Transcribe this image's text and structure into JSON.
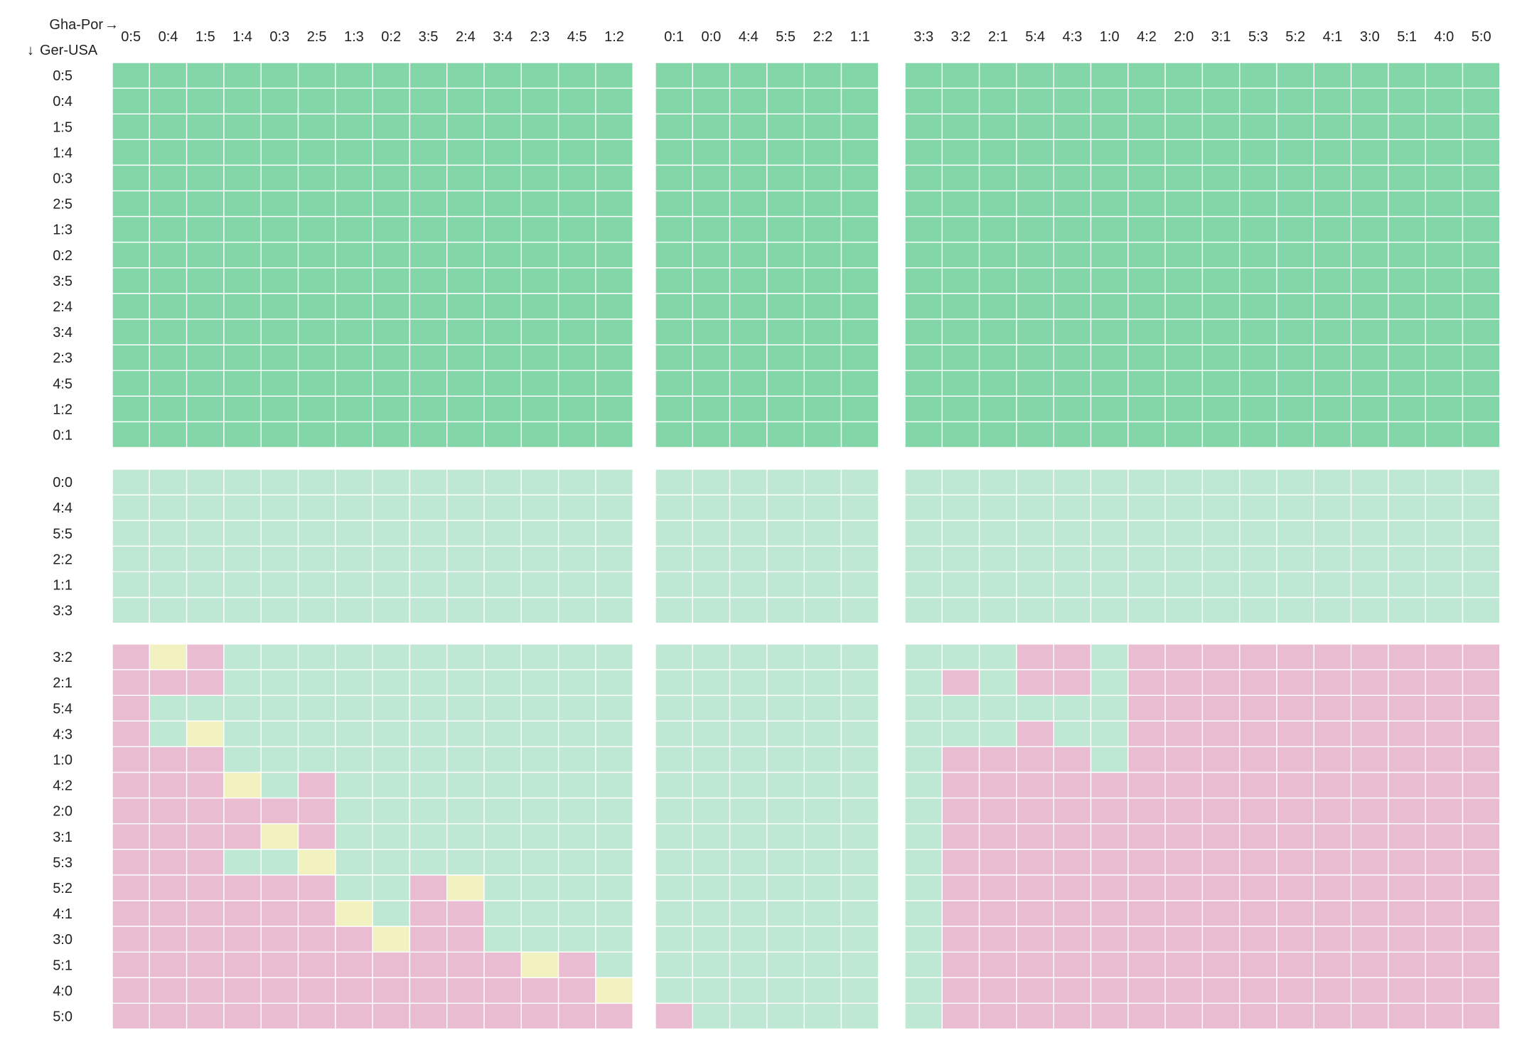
{
  "chart_data": {
    "type": "heatmap",
    "title": "",
    "corner_label": {
      "x_axis": "Gha-Por",
      "y_axis": "Ger-USA",
      "x_arrow": "→",
      "y_arrow": "↓"
    },
    "x_groups": [
      [
        "0:5",
        "0:4",
        "1:5",
        "1:4",
        "0:3",
        "2:5",
        "1:3",
        "0:2",
        "3:5",
        "2:4",
        "3:4",
        "2:3",
        "4:5",
        "1:2"
      ],
      [
        "0:1",
        "0:0",
        "4:4",
        "5:5",
        "2:2",
        "1:1"
      ],
      [
        "3:3",
        "3:2",
        "2:1",
        "5:4",
        "4:3",
        "1:0",
        "4:2",
        "2:0",
        "3:1",
        "5:3",
        "5:2",
        "4:1",
        "3:0",
        "5:1",
        "4:0",
        "5:0"
      ]
    ],
    "y_groups": [
      [
        "0:5",
        "0:4",
        "1:5",
        "1:4",
        "0:3",
        "2:5",
        "1:3",
        "0:2",
        "3:5",
        "2:4",
        "3:4",
        "2:3",
        "4:5",
        "1:2",
        "0:1"
      ],
      [
        "0:0",
        "4:4",
        "5:5",
        "2:2",
        "1:1",
        "3:3"
      ],
      [
        "3:2",
        "2:1",
        "5:4",
        "4:3",
        "1:0",
        "4:2",
        "2:0",
        "3:1",
        "5:3",
        "5:2",
        "4:1",
        "3:0",
        "5:1",
        "4:0",
        "5:0"
      ]
    ],
    "legend_colors": {
      "G": "#82d6a8",
      "L": "#bee8d3",
      "P": "#e9bcd1",
      "Y": "#f2f1c0"
    },
    "grid_color": "#ffffff",
    "default_fill_by_row_group": [
      "G",
      "L"
    ],
    "bottom_rows": [
      "PYPLLLLLLLLLLL|LLLLLL|LLLPPLPPPPPPPPPP",
      "PPPLLLLLLLLLLL|LLLLLL|LPLPPLPPPPPPPPPP",
      "PLLLLLLLLLLLLL|LLLLLL|LLLLLLPPPPPPPPPP",
      "PLYLLLLLLLLLLL|LLLLLL|LLLPLLPPPPPPPPPP",
      "PPPLLLLLLLLLLL|LLLLLL|LPPPPLPPPPPPPPPP",
      "PPPYLPLLLLLLLL|LLLLLL|LPPPPPPPPPPPPPPP",
      "PPPPPPLLLLLLLL|LLLLLL|LPPPPPPPPPPPPPPP",
      "PPPPYPLLLLLLLL|LLLLLL|LPPPPPPPPPPPPPPP",
      "PPPLLYLLLLLLLL|LLLLLL|LPPPPPPPPPPPPPPP",
      "PPPPPPLLPYLLLL|LLLLLL|LPPPPPPPPPPPPPPP",
      "PPPPPPYLPPLLLL|LLLLLL|LPPPPPPPPPPPPPPP",
      "PPPPPPPYPPLLLL|LLLLLL|LPPPPPPPPPPPPPPP",
      "PPPPPPPPPPPYPL|LLLLLL|LPPPPPPPPPPPPPPP",
      "PPPPPPPPPPPPPY|LLLLLL|LPPPPPPPPPPPPPPP",
      "PPPPPPPPPPPPPP|PLLLLL|LPPPPPPPPPPPPPPP"
    ]
  }
}
